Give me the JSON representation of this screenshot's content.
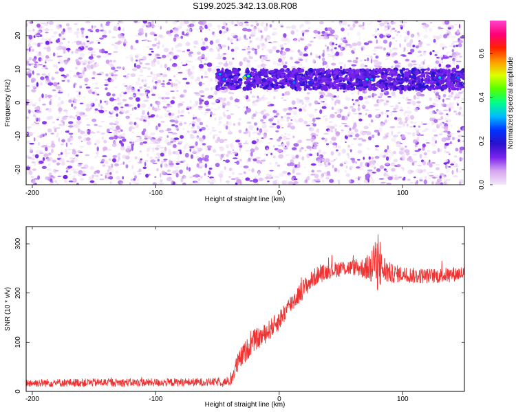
{
  "title": "S199.2025.342.13.08.R08",
  "colors": {
    "snr_line": "#ee3333",
    "band": "#5511dd",
    "axis": "#000000"
  },
  "colorbar": {
    "label": "Normalized spectral amplitude",
    "range": [
      0.0,
      0.75
    ],
    "ticks": [
      0.0,
      0.2,
      0.4,
      0.6
    ],
    "tick_labels": [
      "0.0",
      "0.2",
      "0.4",
      "0.6"
    ],
    "colormap": [
      "#f2e8f8",
      "#d6a6ef",
      "#7a22ee",
      "#2a11cc",
      "#0033ff",
      "#00bbff",
      "#00ff88",
      "#55ff00",
      "#ddff00",
      "#ff9900",
      "#ff2200",
      "#ff0077",
      "#ff44cc"
    ]
  },
  "chart_data": [
    {
      "type": "heatmap",
      "name": "spectrogram",
      "title": "S199.2025.342.13.08.R08",
      "xlabel": "Height of straight line (km)",
      "ylabel": "Frequency (Hz)",
      "xlim": [
        -205,
        150
      ],
      "ylim": [
        -24.5,
        24.5
      ],
      "xticks": [
        -200,
        -100,
        0,
        100
      ],
      "xtick_labels": [
        "-200",
        "-100",
        "0",
        "100"
      ],
      "yticks": [
        -20,
        -10,
        0,
        10,
        20
      ],
      "ytick_labels": [
        "-20",
        "-10",
        "0",
        "10",
        "20"
      ],
      "colorbar_label": "Normalized spectral amplitude",
      "band": {
        "x_start": -50,
        "x_end": 150,
        "freq_center_hz": 7,
        "freq_halfwidth_hz": 3
      },
      "gap": {
        "x_start": -31,
        "x_end": -28
      },
      "hotspots": [
        {
          "x": -48,
          "freq": 8.5,
          "amplitude": 0.3
        },
        {
          "x": -45,
          "freq": 7.0,
          "amplitude": 0.28
        },
        {
          "x": -28,
          "freq": 7.5,
          "amplitude": 0.55
        },
        {
          "x": -25,
          "freq": 8.0,
          "amplitude": 0.4
        },
        {
          "x": 12,
          "freq": 6.0,
          "amplitude": 0.28
        },
        {
          "x": 25,
          "freq": 6.0,
          "amplitude": 0.25
        },
        {
          "x": 71,
          "freq": 7.0,
          "amplitude": 0.33
        },
        {
          "x": 75,
          "freq": 7.0,
          "amplitude": 0.3
        },
        {
          "x": 130,
          "freq": 7.5,
          "amplitude": 0.33
        },
        {
          "x": 145,
          "freq": 7.5,
          "amplitude": 0.28
        }
      ]
    },
    {
      "type": "line",
      "name": "snr",
      "xlabel": "Height of straight line (km)",
      "ylabel": "SNR (10 * v/v)",
      "xlim": [
        -205,
        150
      ],
      "ylim": [
        0,
        335
      ],
      "xticks": [
        -200,
        -100,
        0,
        100
      ],
      "xtick_labels": [
        "-200",
        "-100",
        "0",
        "100"
      ],
      "yticks": [
        0,
        100,
        200,
        300
      ],
      "ytick_labels": [
        "0",
        "100",
        "200",
        "300"
      ],
      "series": [
        {
          "name": "SNR",
          "x": [
            -205,
            -150,
            -100,
            -50,
            -40,
            -38,
            -35,
            -30,
            -20,
            -15,
            -10,
            0,
            10,
            20,
            30,
            40,
            50,
            60,
            70,
            75,
            78,
            80,
            85,
            90,
            100,
            110,
            120,
            130,
            140,
            150
          ],
          "y": [
            17,
            18,
            18,
            19,
            19,
            30,
            50,
            72,
            105,
            110,
            120,
            145,
            180,
            210,
            235,
            245,
            250,
            252,
            250,
            255,
            262,
            248,
            248,
            240,
            238,
            235,
            235,
            235,
            238,
            240
          ],
          "noise_amplitude": [
            8,
            8,
            8,
            8,
            8,
            14,
            20,
            22,
            22,
            20,
            20,
            20,
            20,
            20,
            18,
            16,
            16,
            16,
            22,
            38,
            55,
            45,
            30,
            20,
            16,
            16,
            15,
            15,
            15,
            15
          ]
        }
      ]
    }
  ]
}
